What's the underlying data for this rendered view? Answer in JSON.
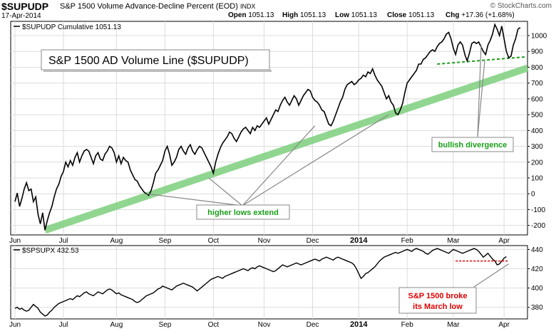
{
  "header": {
    "symbol": "$SUPUDP",
    "description": "S&P 1500 Volume Advance-Decline Percent (EOD)",
    "exchange": "INDX",
    "date": "17-Apr-2014",
    "brand": "© StockCharts.com",
    "open_label": "Open",
    "open_value": "1051.13",
    "high_label": "High",
    "high_value": "1051.13",
    "low_label": "Low",
    "low_value": "1051.13",
    "close_label": "Close",
    "close_value": "1051.13",
    "chg_label": "Chg",
    "chg_value": "+17.36 (+1.68%)"
  },
  "chart_data": [
    {
      "type": "line",
      "legend": "$SUPUDP Cumulative 1051.13",
      "title": "S&P 1500 AD Volume Line ($SUPUDP)",
      "ylim": [
        -260,
        1090
      ],
      "yticks": [
        -200,
        -100,
        0,
        100,
        200,
        300,
        400,
        500,
        600,
        700,
        800,
        900,
        1000
      ],
      "x_month_labels": [
        "Jun",
        "Jul",
        "Aug",
        "Sep",
        "Oct",
        "Nov",
        "Dec",
        "2014",
        "Feb",
        "Mar",
        "Apr"
      ],
      "x_month_positions": [
        0,
        21,
        44,
        65,
        86,
        108,
        129,
        149,
        170,
        190,
        212
      ],
      "grid": true,
      "series": [
        {
          "values": [
            -50,
            5,
            -80,
            -30,
            30,
            70,
            20,
            30,
            -50,
            -20,
            -130,
            -190,
            -120,
            -230,
            -170,
            -120,
            -80,
            -20,
            30,
            60,
            110,
            140,
            200,
            170,
            210,
            180,
            230,
            260,
            200,
            240,
            270,
            280,
            270,
            230,
            190,
            240,
            260,
            220,
            210,
            250,
            270,
            300,
            290,
            260,
            200,
            240,
            190,
            230,
            210,
            200,
            150,
            120,
            90,
            80,
            50,
            30,
            10,
            0,
            -10,
            20,
            70,
            130,
            150,
            180,
            210,
            270,
            300,
            250,
            180,
            200,
            230,
            280,
            300,
            270,
            250,
            290,
            310,
            270,
            250,
            280,
            300,
            290,
            260,
            230,
            200,
            170,
            130,
            200,
            250,
            290,
            320,
            340,
            360,
            390,
            380,
            350,
            330,
            360,
            390,
            410,
            420,
            400,
            380,
            420,
            400,
            430,
            420,
            440,
            460,
            480,
            440,
            470,
            500,
            530,
            520,
            560,
            590,
            610,
            580,
            560,
            590,
            620,
            600,
            560,
            590,
            620,
            640,
            660,
            650,
            610,
            590,
            580,
            560,
            530,
            520,
            480,
            440,
            430,
            460,
            500,
            540,
            580,
            610,
            660,
            690,
            700,
            710,
            690,
            700,
            720,
            730,
            750,
            740,
            770,
            760,
            790,
            750,
            720,
            700,
            680,
            640,
            600,
            620,
            580,
            560,
            510,
            500,
            530,
            570,
            640,
            700,
            720,
            740,
            760,
            780,
            820,
            820,
            850,
            860,
            880,
            900,
            910,
            900,
            930,
            950,
            960,
            980,
            1010,
            1020,
            980,
            920,
            880,
            940,
            960,
            940,
            880,
            840,
            890,
            950,
            960,
            950,
            960,
            930,
            900,
            880,
            940,
            970,
            1010,
            1070,
            1040,
            1000,
            1060,
            980,
            900,
            860,
            870,
            940,
            980,
            1040,
            1051.13
          ]
        }
      ],
      "annotations": [
        "higher lows extend",
        "bullish divergence"
      ]
    },
    {
      "type": "line",
      "legend": "$SPSUPX 432.53",
      "ylim": [
        368,
        444
      ],
      "yticks": [
        380,
        400,
        420,
        440
      ],
      "x_month_labels": [
        "Jun",
        "Jul",
        "Aug",
        "Sep",
        "Oct",
        "Nov",
        "Dec",
        "2014",
        "Feb",
        "Mar",
        "Apr"
      ],
      "x_month_positions": [
        0,
        21,
        44,
        65,
        86,
        108,
        129,
        149,
        170,
        190,
        212
      ],
      "grid": true,
      "series": [
        {
          "values": [
            379,
            380,
            378,
            379,
            377,
            376,
            377,
            380,
            383,
            381,
            379,
            375,
            373,
            371,
            372,
            375,
            377,
            380,
            382,
            384,
            385,
            386,
            387,
            388,
            389,
            388,
            390,
            392,
            391,
            393,
            395,
            396,
            394,
            393,
            392,
            394,
            396,
            395,
            394,
            396,
            398,
            399,
            398,
            396,
            394,
            395,
            393,
            392,
            391,
            390,
            389,
            388,
            386,
            385,
            386,
            388,
            390,
            392,
            393,
            394,
            395,
            397,
            399,
            400,
            402,
            401,
            400,
            399,
            398,
            400,
            402,
            403,
            404,
            405,
            404,
            403,
            402,
            401,
            399,
            397,
            399,
            401,
            403,
            405,
            407,
            409,
            410,
            411,
            412,
            411,
            410,
            412,
            413,
            414,
            415,
            416,
            417,
            418,
            419,
            420,
            419,
            418,
            420,
            421,
            420,
            422,
            423,
            422,
            421,
            420,
            419,
            418,
            417,
            418,
            420,
            422,
            424,
            423,
            422,
            423,
            424,
            425,
            426,
            425,
            424,
            425,
            426,
            427,
            428,
            429,
            430,
            429,
            428,
            430,
            431,
            432,
            431,
            430,
            429,
            431,
            432,
            431,
            430,
            429,
            428,
            427,
            426,
            424,
            420,
            415,
            410,
            412,
            415,
            416,
            418,
            420,
            422,
            425,
            428,
            430,
            432,
            433,
            434,
            435,
            436,
            437,
            436,
            437,
            438,
            439,
            440,
            439,
            438,
            440,
            441,
            440,
            439,
            438,
            436,
            435,
            437,
            439,
            440,
            441,
            440,
            439,
            438,
            437,
            436,
            438,
            440,
            439,
            438,
            437,
            436,
            437,
            438,
            439,
            440,
            441,
            440,
            438,
            435,
            432,
            434,
            436,
            433,
            430,
            428,
            424,
            425,
            428,
            431,
            432.53
          ]
        }
      ],
      "annotations": [
        "S&P 1500 broke its March low"
      ]
    }
  ],
  "colors": {
    "line": "#000000",
    "trend_band": "#7ccf7c",
    "divergence_line": "#1a9e1a",
    "annotation_green_text": "#1a9e1a",
    "annotation_red_text": "#e00000",
    "break_line": "#e00000",
    "grid": "#dcdcdc",
    "pointer": "#888888"
  }
}
